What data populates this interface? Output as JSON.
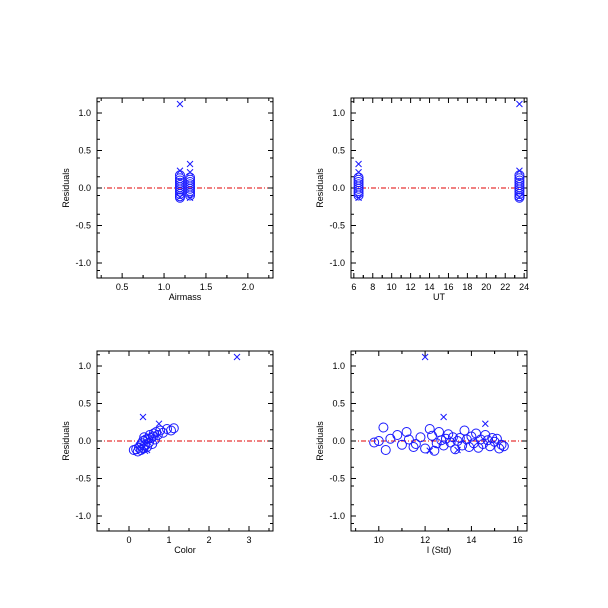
{
  "colors": {
    "marker": "#1a1aff",
    "zero_line": "#e00000",
    "axis": "#000000",
    "background": "#ffffff"
  },
  "chart_data": [
    {
      "type": "scatter",
      "title": "",
      "xlabel": "Airmass",
      "ylabel": "Residuals",
      "xlim": [
        0.2,
        2.3
      ],
      "ylim": [
        -1.2,
        1.2
      ],
      "xticks": [
        0.5,
        1.0,
        1.5,
        2.0
      ],
      "xtick_labels": [
        "0.5",
        "1.0",
        "1.5",
        "2.0"
      ],
      "yticks": [
        -1.0,
        -0.5,
        0.0,
        0.5,
        1.0
      ],
      "ytick_labels": [
        "-1.0",
        "-0.5",
        "0.0",
        "0.5",
        "1.0"
      ],
      "zero_line": 0,
      "series": [
        {
          "marker": "circle",
          "points": [
            [
              1.19,
              0.17
            ],
            [
              1.19,
              0.13
            ],
            [
              1.19,
              0.1
            ],
            [
              1.19,
              0.07
            ],
            [
              1.19,
              0.04
            ],
            [
              1.19,
              0.01
            ],
            [
              1.19,
              -0.02
            ],
            [
              1.19,
              -0.05
            ],
            [
              1.19,
              -0.08
            ],
            [
              1.19,
              -0.11
            ],
            [
              1.19,
              -0.13
            ],
            [
              1.31,
              0.14
            ],
            [
              1.31,
              0.11
            ],
            [
              1.31,
              0.08
            ],
            [
              1.31,
              0.05
            ],
            [
              1.31,
              0.02
            ],
            [
              1.31,
              -0.01
            ],
            [
              1.31,
              -0.04
            ],
            [
              1.31,
              -0.07
            ],
            [
              1.31,
              -0.1
            ]
          ]
        },
        {
          "marker": "x",
          "points": [
            [
              1.19,
              1.12
            ],
            [
              1.19,
              0.23
            ],
            [
              1.31,
              0.32
            ],
            [
              1.31,
              0.21
            ],
            [
              1.19,
              -0.12
            ],
            [
              1.31,
              -0.13
            ]
          ]
        }
      ]
    },
    {
      "type": "scatter",
      "title": "",
      "xlabel": "UT",
      "ylabel": "Residuals",
      "xlim": [
        5.7,
        24.3
      ],
      "ylim": [
        -1.2,
        1.2
      ],
      "xticks": [
        6,
        8,
        10,
        12,
        14,
        16,
        18,
        20,
        22,
        24
      ],
      "xtick_labels": [
        "6",
        "8",
        "10",
        "12",
        "14",
        "16",
        "18",
        "20",
        "22",
        "24"
      ],
      "yticks": [
        -1.0,
        -0.5,
        0.0,
        0.5,
        1.0
      ],
      "ytick_labels": [
        "-1.0",
        "-0.5",
        "0.0",
        "0.5",
        "1.0"
      ],
      "zero_line": 0,
      "series": [
        {
          "marker": "circle",
          "points": [
            [
              6.5,
              0.14
            ],
            [
              6.5,
              0.11
            ],
            [
              6.5,
              0.08
            ],
            [
              6.5,
              0.05
            ],
            [
              6.5,
              0.02
            ],
            [
              6.5,
              -0.01
            ],
            [
              6.5,
              -0.04
            ],
            [
              6.5,
              -0.07
            ],
            [
              6.5,
              -0.1
            ],
            [
              23.5,
              0.17
            ],
            [
              23.5,
              0.13
            ],
            [
              23.5,
              0.1
            ],
            [
              23.5,
              0.07
            ],
            [
              23.5,
              0.04
            ],
            [
              23.5,
              0.01
            ],
            [
              23.5,
              -0.02
            ],
            [
              23.5,
              -0.05
            ],
            [
              23.5,
              -0.08
            ],
            [
              23.5,
              -0.11
            ],
            [
              23.5,
              -0.13
            ]
          ]
        },
        {
          "marker": "x",
          "points": [
            [
              23.5,
              1.12
            ],
            [
              6.5,
              0.32
            ],
            [
              6.5,
              0.21
            ],
            [
              23.5,
              0.23
            ],
            [
              23.5,
              -0.12
            ],
            [
              6.5,
              -0.13
            ]
          ]
        }
      ]
    },
    {
      "type": "scatter",
      "title": "",
      "xlabel": "Color",
      "ylabel": "Residuals",
      "xlim": [
        -0.8,
        3.6
      ],
      "ylim": [
        -1.2,
        1.2
      ],
      "xticks": [
        0,
        1,
        2,
        3
      ],
      "xtick_labels": [
        "0",
        "1",
        "2",
        "3"
      ],
      "yticks": [
        -1.0,
        -0.5,
        0.0,
        0.5,
        1.0
      ],
      "ytick_labels": [
        "-1.0",
        "-0.5",
        "0.0",
        "0.5",
        "1.0"
      ],
      "zero_line": 0,
      "series": [
        {
          "marker": "circle",
          "points": [
            [
              0.12,
              -0.12
            ],
            [
              0.18,
              -0.11
            ],
            [
              0.22,
              -0.14
            ],
            [
              0.25,
              -0.09
            ],
            [
              0.28,
              -0.06
            ],
            [
              0.3,
              -0.12
            ],
            [
              0.32,
              -0.03
            ],
            [
              0.35,
              0.0
            ],
            [
              0.36,
              -0.1
            ],
            [
              0.38,
              0.05
            ],
            [
              0.4,
              -0.05
            ],
            [
              0.42,
              0.02
            ],
            [
              0.45,
              -0.08
            ],
            [
              0.48,
              0.03
            ],
            [
              0.5,
              -0.02
            ],
            [
              0.52,
              0.08
            ],
            [
              0.55,
              0.04
            ],
            [
              0.58,
              -0.04
            ],
            [
              0.6,
              0.06
            ],
            [
              0.62,
              0.1
            ],
            [
              0.65,
              0.02
            ],
            [
              0.68,
              0.12
            ],
            [
              0.72,
              0.08
            ],
            [
              0.78,
              0.14
            ],
            [
              0.85,
              0.11
            ],
            [
              0.95,
              0.16
            ],
            [
              1.05,
              0.14
            ],
            [
              1.12,
              0.17
            ]
          ]
        },
        {
          "marker": "x",
          "points": [
            [
              2.7,
              1.12
            ],
            [
              0.35,
              0.32
            ],
            [
              0.75,
              0.23
            ],
            [
              0.4,
              -0.13
            ],
            [
              0.45,
              -0.12
            ]
          ]
        }
      ]
    },
    {
      "type": "scatter",
      "title": "",
      "xlabel": "I (Std)",
      "ylabel": "Residuals",
      "xlim": [
        8.8,
        16.4
      ],
      "ylim": [
        -1.2,
        1.2
      ],
      "xticks": [
        10,
        12,
        14,
        16
      ],
      "xtick_labels": [
        "10",
        "12",
        "14",
        "16"
      ],
      "yticks": [
        -1.0,
        -0.5,
        0.0,
        0.5,
        1.0
      ],
      "ytick_labels": [
        "-1.0",
        "-0.5",
        "0.0",
        "0.5",
        "1.0"
      ],
      "zero_line": 0,
      "series": [
        {
          "marker": "circle",
          "points": [
            [
              9.8,
              -0.02
            ],
            [
              10.0,
              0.0
            ],
            [
              10.2,
              0.18
            ],
            [
              10.3,
              -0.12
            ],
            [
              10.5,
              0.03
            ],
            [
              10.8,
              0.08
            ],
            [
              11.0,
              -0.05
            ],
            [
              11.2,
              0.12
            ],
            [
              11.3,
              0.02
            ],
            [
              11.5,
              -0.08
            ],
            [
              11.6,
              -0.04
            ],
            [
              11.8,
              0.05
            ],
            [
              12.0,
              -0.1
            ],
            [
              12.2,
              0.16
            ],
            [
              12.3,
              0.07
            ],
            [
              12.4,
              -0.13
            ],
            [
              12.5,
              -0.03
            ],
            [
              12.6,
              0.12
            ],
            [
              12.7,
              0.01
            ],
            [
              12.8,
              -0.06
            ],
            [
              12.9,
              0.03
            ],
            [
              13.0,
              0.09
            ],
            [
              13.1,
              -0.02
            ],
            [
              13.2,
              0.05
            ],
            [
              13.3,
              -0.11
            ],
            [
              13.4,
              0.0
            ],
            [
              13.5,
              0.04
            ],
            [
              13.6,
              -0.06
            ],
            [
              13.7,
              0.14
            ],
            [
              13.8,
              0.02
            ],
            [
              13.9,
              -0.08
            ],
            [
              14.0,
              0.06
            ],
            [
              14.1,
              -0.03
            ],
            [
              14.2,
              0.1
            ],
            [
              14.3,
              -0.09
            ],
            [
              14.4,
              0.02
            ],
            [
              14.5,
              -0.04
            ],
            [
              14.6,
              0.08
            ],
            [
              14.7,
              0.01
            ],
            [
              14.8,
              -0.07
            ],
            [
              14.9,
              0.04
            ],
            [
              15.0,
              -0.01
            ],
            [
              15.1,
              0.03
            ],
            [
              15.2,
              -0.1
            ],
            [
              15.3,
              -0.05
            ],
            [
              15.4,
              -0.07
            ]
          ]
        },
        {
          "marker": "x",
          "points": [
            [
              12.0,
              1.12
            ],
            [
              12.8,
              0.32
            ],
            [
              14.6,
              0.23
            ],
            [
              12.2,
              -0.13
            ],
            [
              13.4,
              -0.12
            ]
          ]
        }
      ]
    }
  ]
}
